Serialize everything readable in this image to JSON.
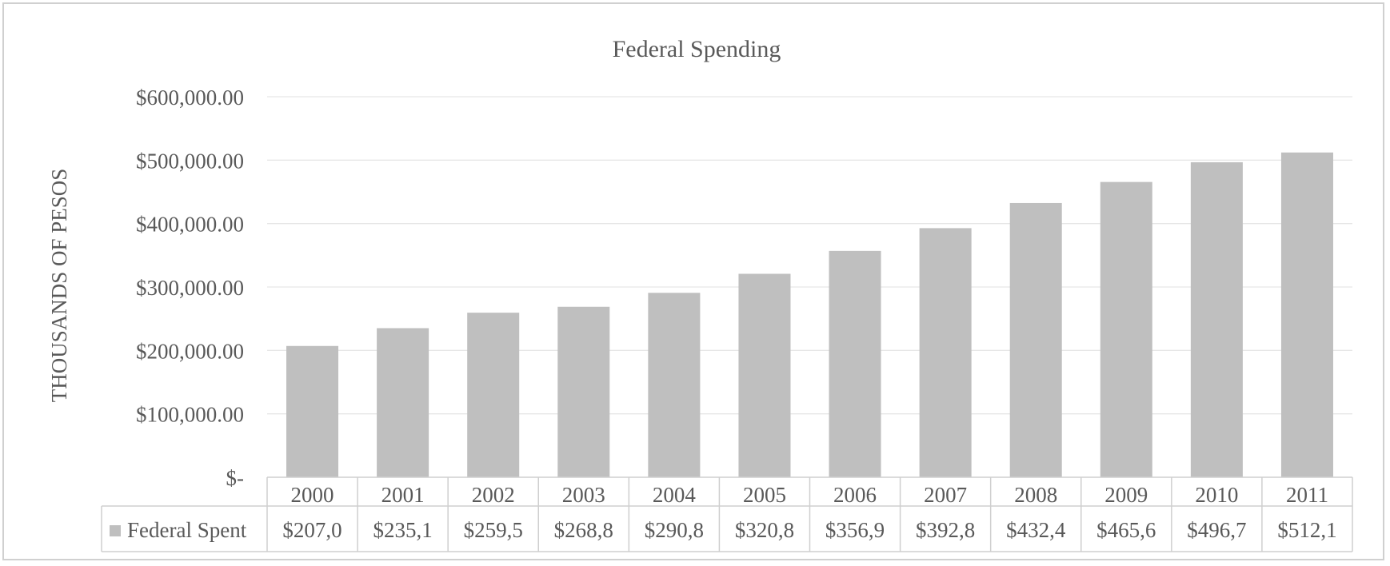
{
  "chart_data": {
    "type": "bar",
    "title": "Federal Spending",
    "xlabel": "",
    "ylabel": "THOUSANDS OF PESOS",
    "ylim": [
      0,
      600000
    ],
    "yticks": [
      0,
      100000,
      200000,
      300000,
      400000,
      500000,
      600000
    ],
    "ytick_labels": [
      "$-",
      "$100,000.00",
      "$200,000.00",
      "$300,000.00",
      "$400,000.00",
      "$500,000.00",
      "$600,000.00"
    ],
    "categories": [
      "2000",
      "2001",
      "2002",
      "2003",
      "2004",
      "2005",
      "2006",
      "2007",
      "2008",
      "2009",
      "2010",
      "2011"
    ],
    "series": [
      {
        "name": "Federal Spent",
        "color": "#bfbfbf",
        "values": [
          207000,
          235100,
          259500,
          268800,
          290800,
          320800,
          356900,
          392800,
          432400,
          465600,
          496700,
          512100
        ],
        "table_labels": [
          "$207,0",
          "$235,1",
          "$259,5",
          "$268,8",
          "$290,8",
          "$320,8",
          "$356,9",
          "$392,8",
          "$432,4",
          "$465,6",
          "$496,7",
          "$512,1"
        ]
      }
    ],
    "grid": true,
    "data_table": true,
    "colors": {
      "bar": "#bfbfbf",
      "grid": "#e6e6e6",
      "table_border": "#cfcfcf",
      "text": "#595959",
      "frame": "#d0d0d0"
    }
  }
}
